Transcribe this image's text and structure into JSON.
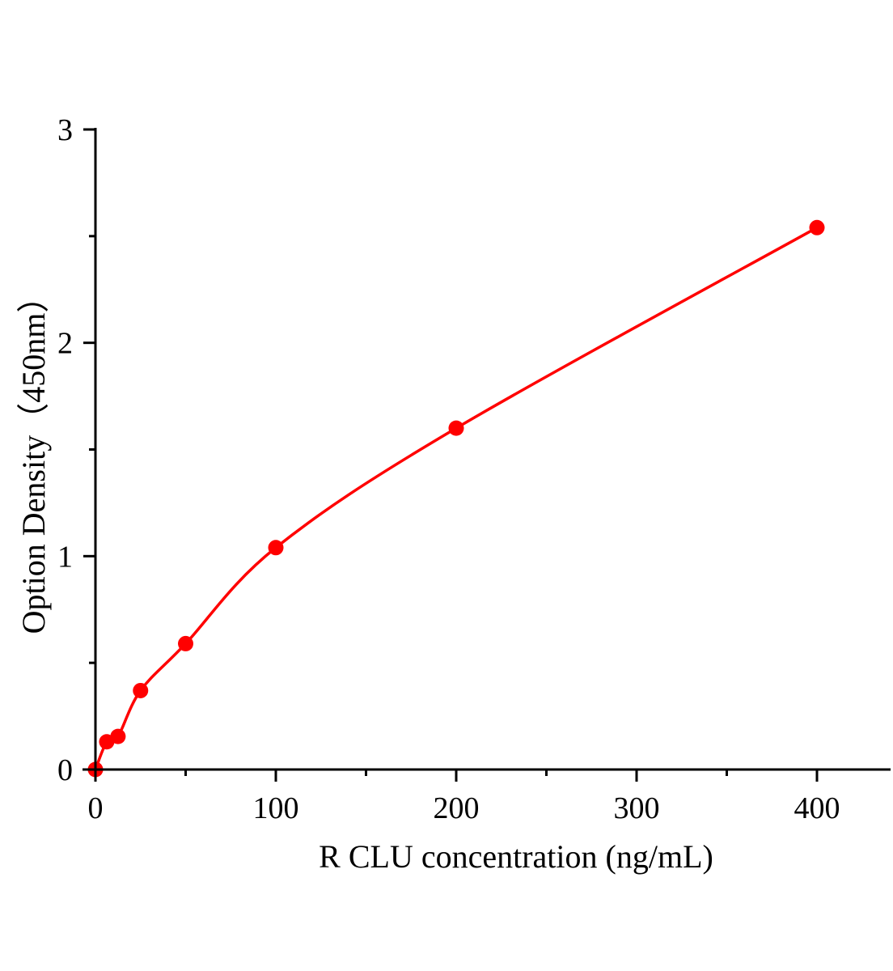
{
  "chart_data": {
    "type": "scatter",
    "title": "",
    "xlabel": "R CLU concentration (ng/mL)",
    "ylabel": "Option Density（450nm）",
    "xlim": [
      0,
      440
    ],
    "ylim": [
      0,
      3
    ],
    "x_ticks": [
      "0",
      "100",
      "200",
      "300",
      "400"
    ],
    "y_ticks": [
      "0",
      "1",
      "2",
      "3"
    ],
    "x_minor_ticks": [
      50,
      150,
      250,
      350
    ],
    "y_minor_ticks": [
      0.5,
      1.5,
      2.5
    ],
    "grid": false,
    "legend": "none",
    "fit_curve": true,
    "color": "#ff0000",
    "x": [
      0,
      6.25,
      12.5,
      25,
      50,
      100,
      200,
      400
    ],
    "y": [
      0.0,
      0.13,
      0.155,
      0.37,
      0.59,
      1.04,
      1.6,
      2.54
    ]
  }
}
